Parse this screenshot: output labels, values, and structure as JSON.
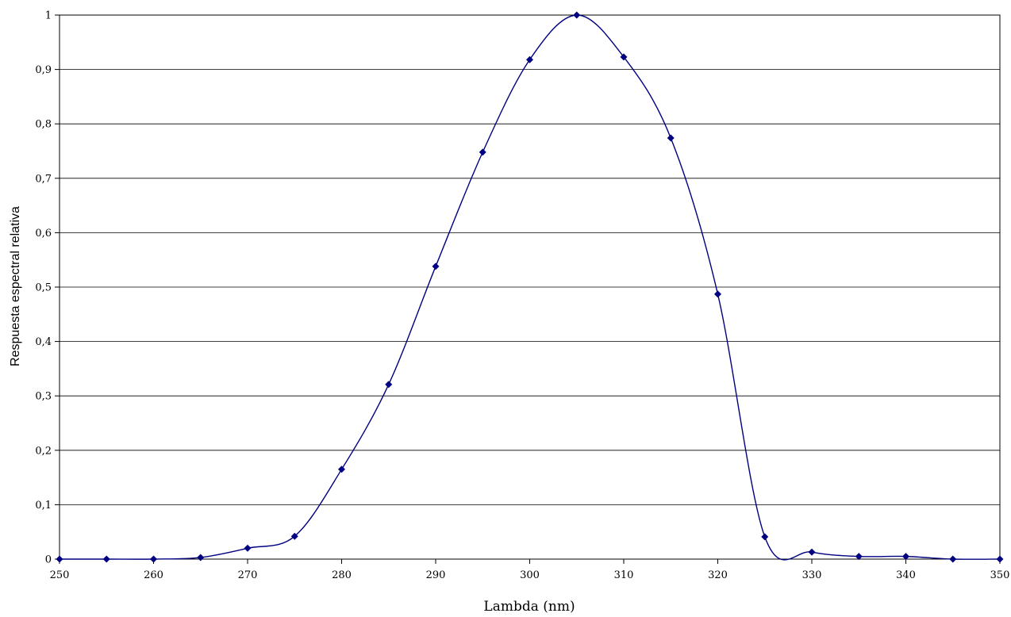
{
  "chart_data": {
    "type": "line",
    "title": "",
    "xlabel": "Lambda (nm)",
    "ylabel": "Respuesta espectral relativa",
    "xlim": [
      250,
      350
    ],
    "ylim": [
      0,
      1
    ],
    "x_ticks": [
      250,
      260,
      270,
      280,
      290,
      300,
      310,
      320,
      330,
      340,
      350
    ],
    "x_tick_labels": [
      "250",
      "260",
      "270",
      "280",
      "290",
      "300",
      "310",
      "320",
      "330",
      "340",
      "350"
    ],
    "y_ticks": [
      0,
      0.1,
      0.2,
      0.3,
      0.4,
      0.5,
      0.6,
      0.7,
      0.8,
      0.9,
      1
    ],
    "y_tick_labels": [
      "0",
      "0,1",
      "0,2",
      "0,3",
      "0,4",
      "0,5",
      "0,6",
      "0,7",
      "0,8",
      "0,9",
      "1"
    ],
    "grid": "horizontal",
    "legend": "none",
    "marker": "diamond",
    "line_color": "#000080",
    "marker_color": "#000080",
    "grid_color": "#000000",
    "series": [
      {
        "x": [
          250,
          255,
          260,
          265,
          270,
          275,
          280,
          285,
          290,
          295,
          300,
          305,
          310,
          315,
          320,
          325,
          330,
          335,
          340,
          345,
          350
        ],
        "values": [
          0,
          0,
          0,
          0.003,
          0.02,
          0.042,
          0.165,
          0.321,
          0.538,
          0.748,
          0.918,
          1.0,
          0.923,
          0.774,
          0.487,
          0.041,
          0.013,
          0.005,
          0.005,
          0,
          0
        ]
      }
    ]
  }
}
